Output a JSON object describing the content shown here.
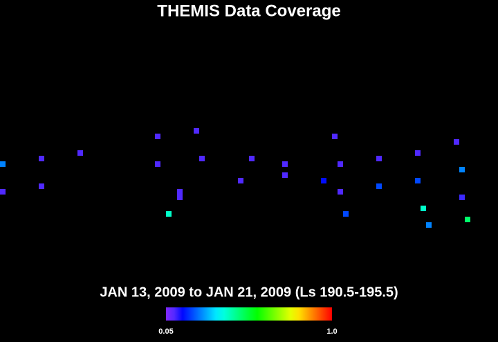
{
  "chart_data": {
    "type": "scatter",
    "title": "THEMIS Data Coverage",
    "subtitle": "JAN 13, 2009 to JAN 21, 2009 (Ls 190.5-195.5)",
    "x": [
      4,
      4,
      60,
      60,
      116,
      228,
      228,
      244,
      260,
      260,
      284,
      292,
      348,
      364,
      412,
      412,
      468,
      484,
      492,
      492,
      500,
      548,
      548,
      604,
      604,
      612,
      620,
      660,
      668,
      668,
      676
    ],
    "y": [
      217,
      257,
      225,
      265,
      273,
      257,
      297,
      185,
      209,
      217,
      305,
      265,
      233,
      265,
      241,
      257,
      233,
      297,
      217,
      257,
      185,
      225,
      265,
      233,
      273,
      193,
      169,
      289,
      209,
      249,
      177
    ],
    "values": [
      0.1,
      0.25,
      0.1,
      0.1,
      0.1,
      0.1,
      0.1,
      0.4,
      0.1,
      0.1,
      0.1,
      0.1,
      0.1,
      0.1,
      0.1,
      0.1,
      0.15,
      0.1,
      0.1,
      0.1,
      0.2,
      0.2,
      0.1,
      0.2,
      0.1,
      0.4,
      0.25,
      0.1,
      0.12,
      0.25,
      0.48
    ],
    "xlim": [
      0,
      720
    ],
    "ylim": [
      494,
      0
    ],
    "colorlim": [
      0.05,
      1
    ],
    "colorticks": [
      0.05,
      {
        "value": 1,
        "label": "1.0"
      }
    ]
  }
}
